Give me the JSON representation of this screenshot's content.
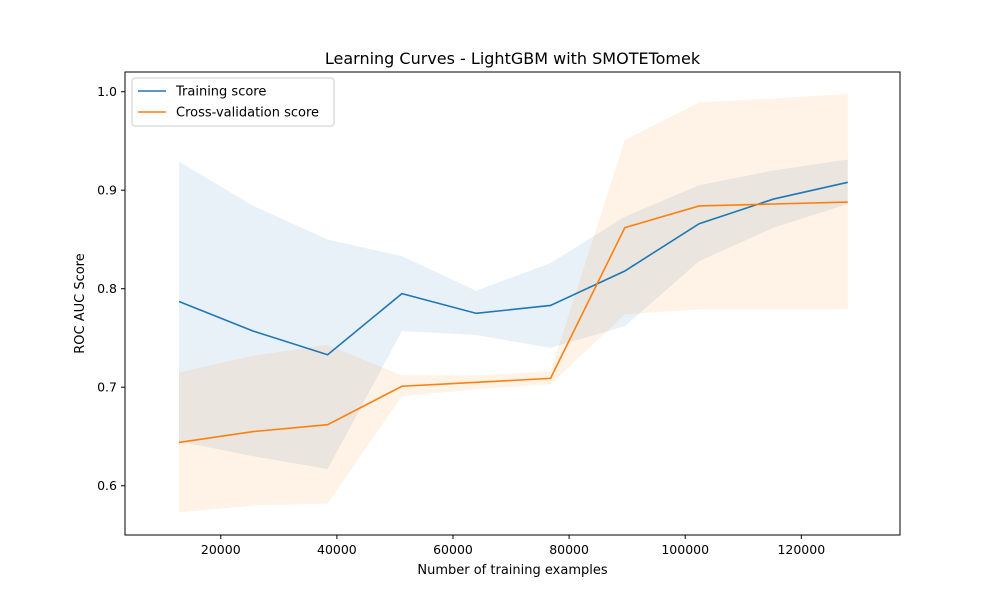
{
  "chart_data": {
    "type": "line",
    "title": "Learning Curves - LightGBM with SMOTETomek",
    "xlabel": "Number of training examples",
    "ylabel": "ROC AUC Score",
    "xlim": [
      3500,
      137000
    ],
    "ylim": [
      0.55,
      1.02
    ],
    "xticks": [
      20000,
      40000,
      60000,
      80000,
      100000,
      120000
    ],
    "xtick_labels": [
      "20000",
      "40000",
      "60000",
      "80000",
      "100000",
      "120000"
    ],
    "yticks": [
      0.6,
      0.7,
      0.8,
      0.9,
      1.0
    ],
    "ytick_labels": [
      "0.6",
      "0.7",
      "0.8",
      "0.9",
      "1.0"
    ],
    "grid": false,
    "legend": {
      "placement": "top-left",
      "entries": [
        "Training score",
        "Cross-validation score"
      ]
    },
    "x": [
      12800,
      25600,
      38400,
      51200,
      64000,
      76800,
      89600,
      102400,
      115200,
      128000
    ],
    "series": [
      {
        "name": "Training score",
        "color": "#1f77b4",
        "values": [
          0.787,
          0.757,
          0.733,
          0.795,
          0.775,
          0.783,
          0.818,
          0.866,
          0.891,
          0.908
        ],
        "lower": [
          0.645,
          0.63,
          0.617,
          0.757,
          0.753,
          0.74,
          0.762,
          0.828,
          0.862,
          0.886
        ],
        "upper": [
          0.929,
          0.884,
          0.85,
          0.833,
          0.798,
          0.826,
          0.873,
          0.905,
          0.92,
          0.931
        ]
      },
      {
        "name": "Cross-validation score",
        "color": "#ff7f0e",
        "values": [
          0.644,
          0.655,
          0.662,
          0.701,
          0.705,
          0.709,
          0.862,
          0.884,
          0.886,
          0.888
        ],
        "lower": [
          0.573,
          0.58,
          0.582,
          0.691,
          0.698,
          0.703,
          0.774,
          0.779,
          0.779,
          0.779
        ],
        "upper": [
          0.715,
          0.732,
          0.743,
          0.712,
          0.712,
          0.716,
          0.951,
          0.989,
          0.993,
          0.998
        ]
      }
    ]
  }
}
